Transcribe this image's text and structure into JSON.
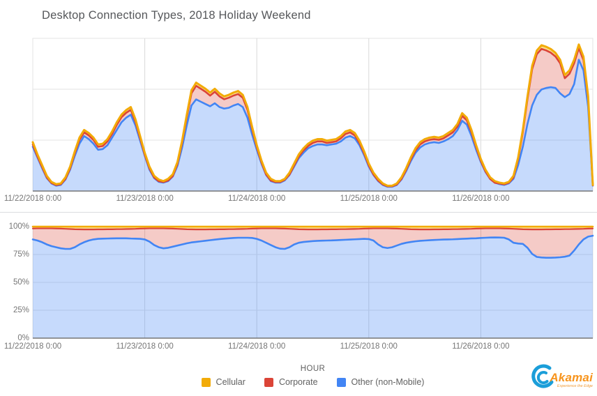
{
  "title": "Desktop Connection Types, 2018 Holiday Weekend",
  "colors": {
    "cellular": "#f2ab08",
    "corporate": "#db4437",
    "other": "#4285f4",
    "cellular_fill": "rgba(244,180,0,0.45)",
    "corporate_fill": "rgba(219,68,55,0.28)",
    "other_fill": "rgba(66,133,244,0.30)",
    "grid": "#e3e3e3",
    "grid_vertical": "#d9d9d9",
    "baseline": "#767676",
    "tick_text": "#757575",
    "title_text": "#55575a"
  },
  "axis": {
    "hour_label": "HOUR",
    "x_ticks": [
      "11/22/2018 0:00",
      "11/23/2018 0:00",
      "11/24/2018 0:00",
      "11/25/2018 0:00",
      "11/26/2018 0:00"
    ],
    "x_tick_hours": [
      0,
      24,
      48,
      72,
      96
    ],
    "pct_ticks": [
      "100%",
      "75%",
      "50%",
      "25%",
      "0%"
    ],
    "pct_tick_values": [
      100,
      75,
      50,
      25,
      0
    ]
  },
  "legend": {
    "items": [
      {
        "label": "Cellular",
        "color": "#f2ab08"
      },
      {
        "label": "Corporate",
        "color": "#db4437"
      },
      {
        "label": "Other (non-Mobile)",
        "color": "#4285f4"
      }
    ]
  },
  "logo": {
    "name": "Akamai",
    "tagline": "Experience the Edge"
  },
  "chart_data": [
    {
      "type": "area",
      "stacked": true,
      "title": "Desktop connection volume by type (y-axis unlabeled)",
      "x_unit": "hour offset from 11/22/2018 0:00, hourly samples 0-120",
      "x_ticks": [
        "11/22/2018 0:00",
        "11/23/2018 0:00",
        "11/24/2018 0:00",
        "11/25/2018 0:00",
        "11/26/2018 0:00"
      ],
      "ylim": [
        0,
        100
      ],
      "grid": true,
      "note": "values are percent of plot height; stacked tops: other_top (blue line) <= corporate_top (red line) <= total_cellular_top (yellow line); data ends with cliff at hour 120",
      "series": [
        {
          "name": "Other (non-Mobile) top",
          "color": "#4285f4",
          "values": [
            29,
            22,
            15,
            8.5,
            5,
            3.5,
            4,
            7.5,
            14,
            23,
            31,
            36,
            34,
            31,
            27,
            27.5,
            30,
            35,
            40,
            45,
            48,
            50,
            43,
            33,
            23,
            14,
            8.5,
            6,
            5.5,
            6.5,
            9.5,
            16.5,
            28.5,
            43,
            56,
            60,
            58.5,
            57,
            55.5,
            57.5,
            55,
            54,
            54.5,
            56,
            57,
            55,
            48,
            37,
            27,
            18,
            10.5,
            6.5,
            5.5,
            5.5,
            7,
            10.5,
            16,
            21.5,
            25,
            28,
            29.5,
            30.5,
            30.5,
            30,
            30.5,
            31,
            32.5,
            35,
            36,
            34.5,
            30,
            23.5,
            16,
            10.5,
            6.5,
            4,
            2.8,
            2.8,
            4,
            7.5,
            13,
            19.5,
            25,
            28.5,
            30.5,
            31.5,
            32,
            31.5,
            32.5,
            34,
            36,
            40,
            46,
            43.5,
            36,
            27,
            19,
            12.5,
            8,
            5.5,
            4.5,
            4,
            5,
            8,
            17,
            29,
            44,
            56,
            63,
            66.5,
            67.5,
            68,
            67.5,
            64,
            61.5,
            63.5,
            70,
            86,
            79,
            55,
            3.5
          ]
        },
        {
          "name": "Corporate top",
          "color": "#db4437",
          "values": [
            30.5,
            22.6,
            15.7,
            8.9,
            5.3,
            3.9,
            4.4,
            7.9,
            14.8,
            24.6,
            33.5,
            38.4,
            36.4,
            33.5,
            29,
            29.5,
            32.5,
            37.4,
            43.3,
            48.3,
            51.2,
            53.2,
            45.3,
            34.5,
            23.6,
            14.8,
            8.9,
            6.4,
            5.9,
            6.9,
            9.8,
            17.7,
            31.5,
            48.3,
            64,
            68.9,
            67,
            65,
            62.5,
            65,
            62,
            60.1,
            61.1,
            62.5,
            63.5,
            61.1,
            53.2,
            40.4,
            28.6,
            18.7,
            10.8,
            6.9,
            5.9,
            5.9,
            7.4,
            10.8,
            16.7,
            22.6,
            26.6,
            29.5,
            31.5,
            32.5,
            32.5,
            31.5,
            32,
            32.5,
            34.5,
            37.4,
            38.4,
            36.4,
            31.5,
            24.6,
            16.7,
            10.8,
            6.9,
            4.3,
            3.1,
            3.1,
            4.3,
            7.9,
            13.8,
            20.7,
            26.6,
            30.5,
            32.5,
            33.5,
            34,
            33.5,
            34.5,
            36.4,
            38.4,
            42.3,
            49.2,
            46.3,
            38.4,
            28.6,
            19.7,
            12.8,
            7.9,
            5.4,
            4.9,
            4.4,
            5.4,
            8.9,
            20.7,
            38.4,
            60.1,
            79.8,
            89.6,
            93.1,
            92.1,
            90.6,
            88.1,
            83.7,
            73.9,
            76.8,
            83.7,
            93.6,
            85.7,
            60.1,
            3.7
          ]
        },
        {
          "name": "Total (Cellular top)",
          "color": "#f2ab08",
          "values": [
            32,
            24,
            17,
            10,
            6,
            4.5,
            5,
            9,
            16,
            26,
            35,
            40,
            38,
            35,
            30.5,
            31,
            34,
            39,
            45,
            50,
            53,
            55,
            47,
            36,
            25,
            16,
            10,
            7.5,
            6.5,
            8,
            11,
            19,
            33,
            50,
            66,
            71,
            69,
            67,
            64.5,
            67,
            64,
            62,
            63,
            64.5,
            65.5,
            63,
            55,
            42,
            30,
            20,
            12,
            8,
            6.5,
            6.5,
            8,
            12,
            18,
            24,
            28,
            31,
            33,
            34,
            34,
            33,
            33.5,
            34,
            36,
            39,
            40,
            38,
            33,
            26,
            18,
            12,
            8,
            5,
            3.5,
            3.5,
            5,
            9,
            15,
            22,
            28,
            32,
            34,
            35,
            35.5,
            35,
            36,
            38,
            40,
            44,
            51,
            48,
            40,
            30,
            21,
            14,
            9,
            6.5,
            5.5,
            5,
            6,
            10,
            22,
            40,
            62,
            82,
            92,
            95.5,
            94.5,
            93,
            90.5,
            86,
            76,
            79,
            86,
            96,
            88,
            62,
            4
          ]
        }
      ]
    },
    {
      "type": "area",
      "stacked": true,
      "percent": true,
      "title": "Share of desktop connections by type (%)",
      "x_unit": "hour offset from 11/22/2018 0:00, hourly samples 0-120",
      "ylim": [
        0,
        100
      ],
      "ylabel_ticks": [
        "0%",
        "25%",
        "50%",
        "75%",
        "100%"
      ],
      "grid": true,
      "note": "stacked tops in percent: other_pct (blue) <= corporate_top_pct (red) <= 100 (flat yellow cellular top)",
      "series": [
        {
          "name": "Other (non-Mobile) %",
          "color": "#4285f4",
          "values": [
            88.5,
            87.5,
            86,
            84,
            82.5,
            81.5,
            80.5,
            80,
            80,
            81.5,
            84,
            86,
            87.5,
            88.5,
            89,
            89.2,
            89.3,
            89.4,
            89.5,
            89.5,
            89.5,
            89.3,
            89.2,
            89,
            88.5,
            86.5,
            83.5,
            81.5,
            80.5,
            81,
            82,
            83,
            84,
            85,
            85.8,
            86.3,
            86.8,
            87.3,
            87.8,
            88.3,
            88.8,
            89.2,
            89.5,
            89.8,
            90,
            90,
            90,
            89.8,
            89,
            87.5,
            85.5,
            83.5,
            81.5,
            80.2,
            80,
            81.5,
            84,
            85.5,
            86.2,
            86.6,
            87,
            87.2,
            87.4,
            87.5,
            87.6,
            87.8,
            88,
            88.2,
            88.4,
            88.6,
            88.8,
            89,
            88.8,
            87.5,
            84,
            81.5,
            80.8,
            81.5,
            83,
            84.5,
            85.5,
            86.2,
            86.8,
            87.2,
            87.5,
            87.8,
            88,
            88.2,
            88.4,
            88.5,
            88.6,
            88.8,
            89,
            89.2,
            89.4,
            89.5,
            89.8,
            90,
            90.2,
            90.3,
            90.2,
            90,
            88.5,
            85.5,
            84.8,
            84.5,
            81,
            75.5,
            72.8,
            72.3,
            72.1,
            72.1,
            72.2,
            72.5,
            73,
            74,
            78.5,
            84,
            88.5,
            91,
            91.8
          ]
        },
        {
          "name": "Corporate top %",
          "color": "#db4437",
          "values": [
            98.3,
            98.4,
            98.4,
            98.4,
            98.4,
            98.3,
            98.2,
            98,
            97.8,
            97.6,
            97.5,
            97.4,
            97.4,
            97.4,
            97.5,
            97.5,
            97.6,
            97.6,
            97.7,
            97.7,
            97.8,
            97.9,
            98,
            98.2,
            98.3,
            98.4,
            98.4,
            98.4,
            98.4,
            98.3,
            98.2,
            98,
            97.8,
            97.6,
            97.5,
            97.4,
            97.4,
            97.4,
            97.5,
            97.5,
            97.6,
            97.6,
            97.7,
            97.7,
            97.8,
            97.9,
            98,
            98.2,
            98.3,
            98.4,
            98.4,
            98.4,
            98.4,
            98.3,
            98.2,
            98,
            97.8,
            97.6,
            97.5,
            97.4,
            97.4,
            97.4,
            97.5,
            97.5,
            97.6,
            97.6,
            97.7,
            97.7,
            97.8,
            97.9,
            98,
            98.2,
            98.3,
            98.4,
            98.4,
            98.4,
            98.4,
            98.3,
            98.2,
            98,
            97.8,
            97.6,
            97.5,
            97.4,
            97.4,
            97.4,
            97.5,
            97.5,
            97.6,
            97.6,
            97.7,
            97.7,
            97.8,
            97.9,
            98,
            98.2,
            98.3,
            98.4,
            98.4,
            98.4,
            98.4,
            98.3,
            98.2,
            98,
            97.8,
            97.6,
            97.5,
            97.4,
            97.4,
            97.4,
            97.5,
            97.5,
            97.6,
            97.6,
            97.7,
            97.7,
            97.8,
            97.9,
            98,
            98.2,
            98.3
          ]
        },
        {
          "name": "Cellular top %",
          "color": "#f2ab08",
          "values_constant": 100
        }
      ]
    }
  ],
  "layout_note": "top chart plot x47-850 y55-274, bottom chart plot x47-850 y325-485"
}
